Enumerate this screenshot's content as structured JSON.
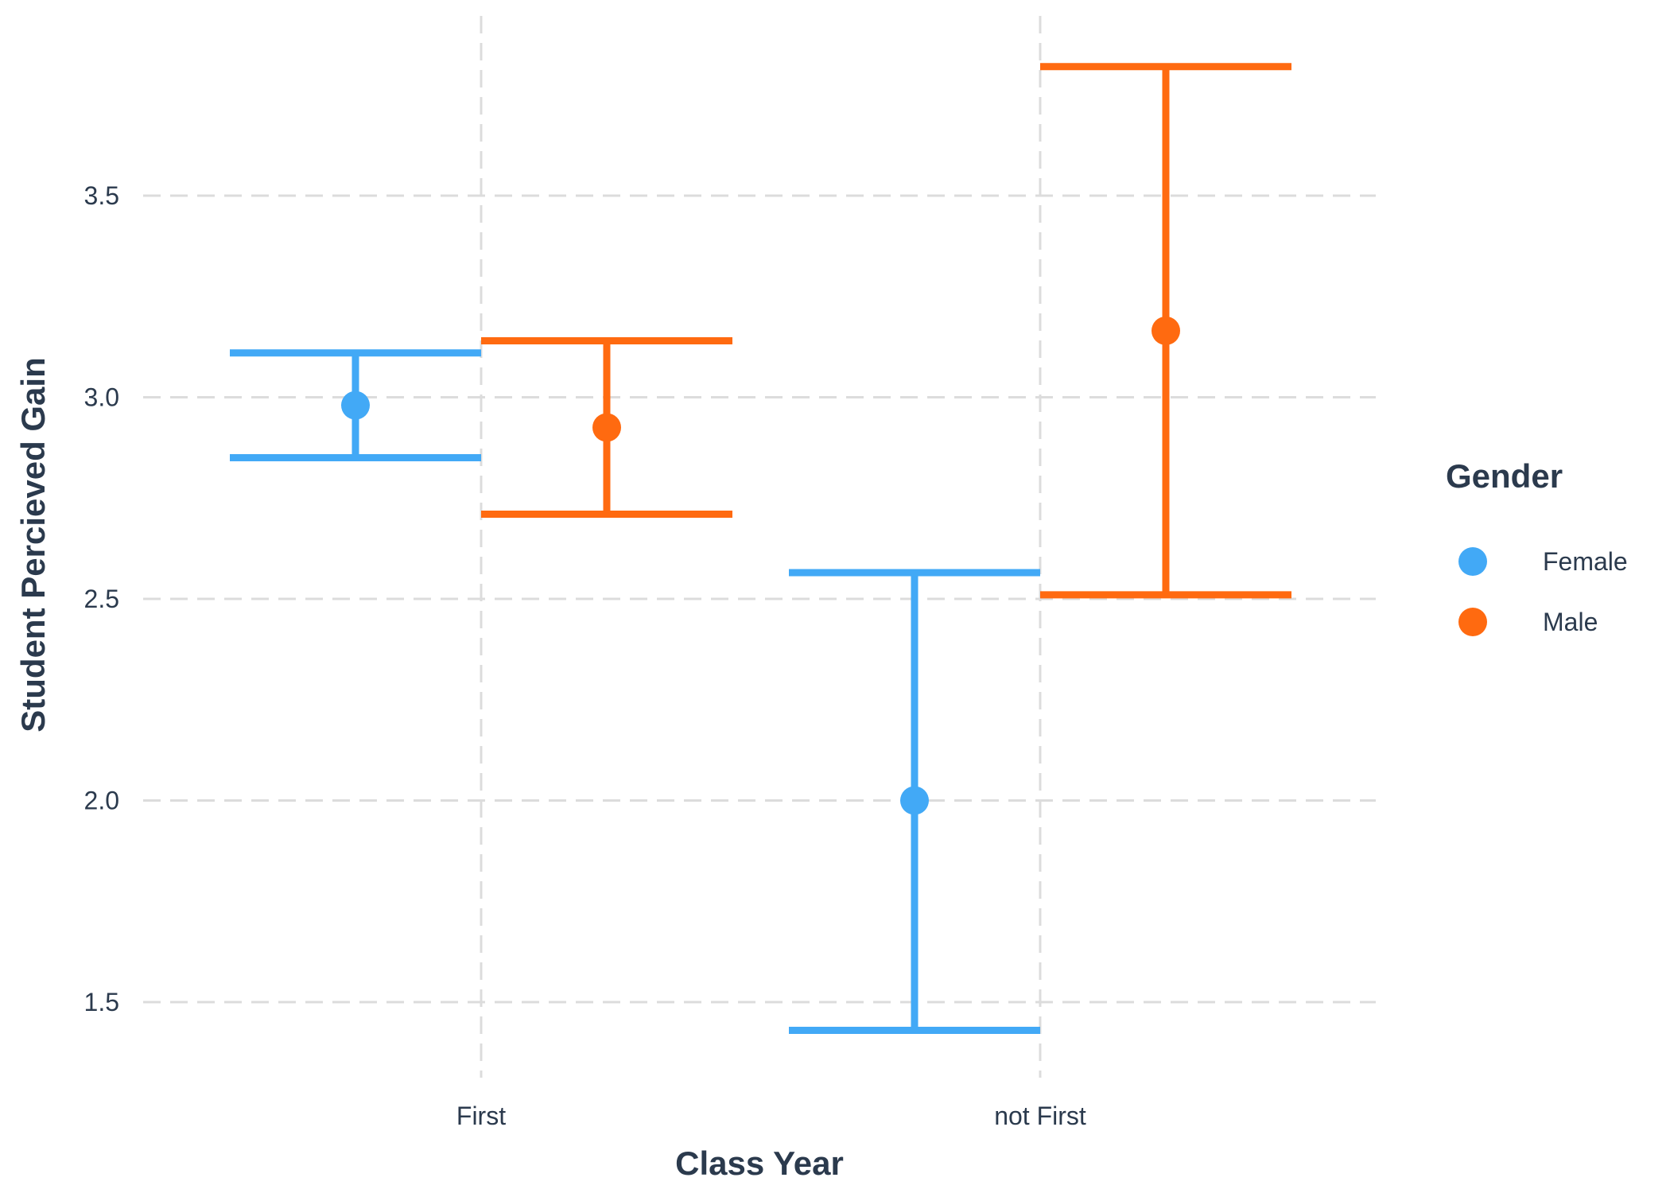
{
  "chart_data": {
    "type": "errorbar",
    "xlabel": "Class Year",
    "ylabel": "Student Percieved Gain",
    "categories": [
      "First",
      "not First"
    ],
    "yticks": [
      1.5,
      2.0,
      2.5,
      3.0,
      3.5
    ],
    "ylim": [
      1.3,
      3.92
    ],
    "grid": true,
    "legend": {
      "title": "Gender",
      "position": "right"
    },
    "series": [
      {
        "name": "Female",
        "color": "#42a9f6",
        "points": [
          {
            "category": "First",
            "y": 2.98,
            "lower": 2.85,
            "upper": 3.11
          },
          {
            "category": "not First",
            "y": 2.0,
            "lower": 1.43,
            "upper": 2.565
          }
        ]
      },
      {
        "name": "Male",
        "color": "#ff6a10",
        "points": [
          {
            "category": "First",
            "y": 2.925,
            "lower": 2.71,
            "upper": 3.14
          },
          {
            "category": "not First",
            "y": 3.165,
            "lower": 2.51,
            "upper": 3.82
          }
        ]
      }
    ]
  }
}
